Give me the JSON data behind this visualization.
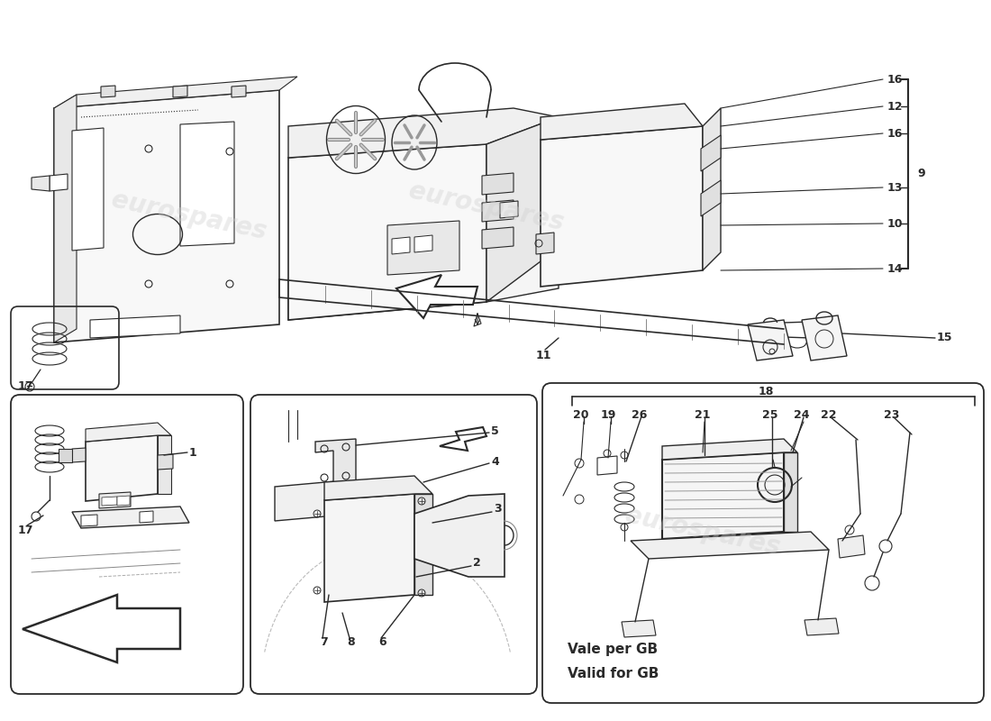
{
  "bg_color": "#ffffff",
  "line_color": "#2a2a2a",
  "watermark_color": "#d0d0d0",
  "label_fontsize": 9,
  "main_parts": [
    "16",
    "12",
    "16",
    "9",
    "13",
    "10",
    "14",
    "11",
    "15"
  ],
  "box3_parts": [
    "18",
    "20",
    "19",
    "26",
    "21",
    "25",
    "24",
    "22",
    "23"
  ],
  "valid_text": [
    "Vale per GB",
    "Valid for GB"
  ]
}
